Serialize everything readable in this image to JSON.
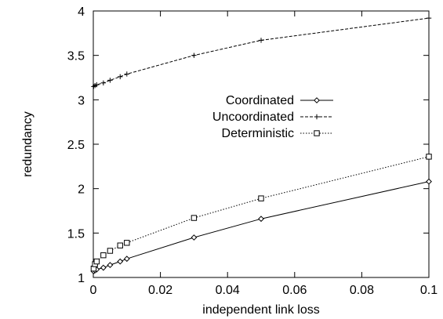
{
  "chart_data": {
    "type": "line",
    "title": "",
    "xlabel": "independent link loss",
    "ylabel": "redundancy",
    "xlim": [
      0,
      0.1
    ],
    "ylim": [
      1,
      4
    ],
    "x_ticks": [
      0,
      0.02,
      0.04,
      0.06,
      0.08,
      0.1
    ],
    "x_tick_labels": [
      "0",
      "0.02",
      "0.04",
      "0.06",
      "0.08",
      "0.1"
    ],
    "y_ticks": [
      1,
      1.5,
      2,
      2.5,
      3,
      3.5,
      4
    ],
    "y_tick_labels": [
      "1",
      "1.5",
      "2",
      "2.5",
      "3",
      "3.5",
      "4"
    ],
    "grid": false,
    "legend_position": "center",
    "series": [
      {
        "name": "Coordinated",
        "line_style": "solid",
        "marker": "diamond",
        "color": "#000000",
        "points": [
          [
            0.0001,
            1.07
          ],
          [
            0.0005,
            1.08
          ],
          [
            0.001,
            1.09
          ],
          [
            0.003,
            1.11
          ],
          [
            0.005,
            1.14
          ],
          [
            0.008,
            1.18
          ],
          [
            0.01,
            1.21
          ],
          [
            0.03,
            1.45
          ],
          [
            0.05,
            1.66
          ],
          [
            0.1,
            2.08
          ]
        ]
      },
      {
        "name": "Uncoordinated",
        "line_style": "dashed",
        "marker": "plus",
        "color": "#000000",
        "points": [
          [
            0.0001,
            3.15
          ],
          [
            0.0005,
            3.16
          ],
          [
            0.001,
            3.17
          ],
          [
            0.003,
            3.19
          ],
          [
            0.005,
            3.22
          ],
          [
            0.008,
            3.26
          ],
          [
            0.01,
            3.29
          ],
          [
            0.03,
            3.5
          ],
          [
            0.05,
            3.67
          ],
          [
            0.1,
            3.92
          ]
        ]
      },
      {
        "name": "Deterministic",
        "line_style": "dotted",
        "marker": "square",
        "color": "#000000",
        "points": [
          [
            0.0001,
            1.1
          ],
          [
            0.0005,
            1.15
          ],
          [
            0.001,
            1.18
          ],
          [
            0.003,
            1.25
          ],
          [
            0.005,
            1.3
          ],
          [
            0.008,
            1.36
          ],
          [
            0.01,
            1.39
          ],
          [
            0.03,
            1.67
          ],
          [
            0.05,
            1.89
          ],
          [
            0.1,
            2.36
          ]
        ]
      }
    ]
  }
}
